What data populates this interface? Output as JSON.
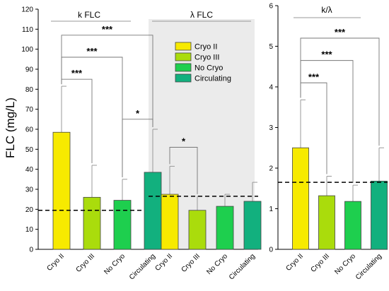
{
  "chart_data": {
    "type": "bar",
    "ylabel": "FLC (mg/L)",
    "legend": {
      "placement": "inside-center-panel",
      "entries": [
        "Cryo II",
        "Cryo III",
        "No Cryo",
        "Circulating"
      ]
    },
    "colors": {
      "Cryo II": "#f7ea00",
      "Cryo III": "#aadc0c",
      "No Cryo": "#1ecf4e",
      "Circulating": "#12b07e",
      "shade": "#ebebeb"
    },
    "categories": [
      "Cryo II",
      "Cryo III",
      "No Cryo",
      "Circulating"
    ],
    "panels": [
      {
        "header": "k FLC",
        "ylim": [
          0,
          120
        ],
        "yticks": [
          0,
          10,
          20,
          30,
          40,
          50,
          60,
          70,
          80,
          90,
          100,
          110,
          120
        ],
        "values": [
          58.5,
          26,
          24.5,
          38.5
        ],
        "error_upper": [
          81.5,
          42,
          35,
          60
        ],
        "reference_line": 19.5,
        "shaded": false,
        "significance": [
          {
            "from": "Cryo II",
            "to": "Cryo III",
            "label": "***",
            "y": 85
          },
          {
            "from": "Cryo II",
            "to": "No Cryo",
            "label": "***",
            "y": 96
          },
          {
            "from": "Cryo II",
            "to": "Circulating",
            "label": "***",
            "y": 107
          },
          {
            "from": "No Cryo",
            "to": "Circulating",
            "label": "*",
            "y": 65
          }
        ]
      },
      {
        "header": "λ FLC",
        "ylim": [
          0,
          120
        ],
        "values": [
          27.5,
          19.5,
          21.5,
          24
        ],
        "error_upper": [
          41.5,
          26.5,
          27.5,
          33.5
        ],
        "reference_line": 26.5,
        "shaded": true,
        "significance": [
          {
            "from": "Cryo II",
            "to": "Cryo III",
            "label": "*",
            "y": 51
          }
        ]
      },
      {
        "header": "k/λ",
        "ylim": [
          0,
          6
        ],
        "yticks": [
          0,
          1,
          2,
          3,
          4,
          5,
          6
        ],
        "values": [
          2.5,
          1.32,
          1.18,
          1.68
        ],
        "error_upper": [
          3.68,
          1.8,
          1.58,
          2.5
        ],
        "reference_line": 1.65,
        "shaded": false,
        "significance": [
          {
            "from": "Cryo II",
            "to": "Cryo III",
            "label": "***",
            "y": 4.1
          },
          {
            "from": "Cryo II",
            "to": "No Cryo",
            "label": "***",
            "y": 4.65
          },
          {
            "from": "Cryo II",
            "to": "Circulating",
            "label": "***",
            "y": 5.2
          }
        ]
      }
    ]
  }
}
